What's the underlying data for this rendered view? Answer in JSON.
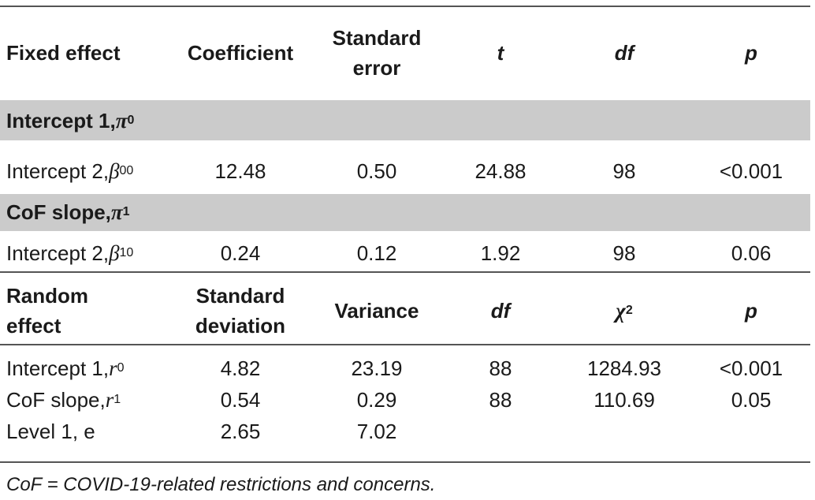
{
  "table": {
    "fixed_header": [
      "Fixed effect",
      "Coefficient",
      "Standard error",
      "t",
      "df",
      "p"
    ],
    "groups": [
      {
        "label": {
          "text": "Intercept 1, ",
          "symbol": "π",
          "sub": "0"
        },
        "row": {
          "label": {
            "text": "Intercept 2, ",
            "symbol": "β",
            "sub": "00"
          },
          "cells": [
            "12.48",
            "0.50",
            "24.88",
            "98",
            "<0.001"
          ]
        }
      },
      {
        "label": {
          "text": "CoF slope, ",
          "symbol": "π",
          "sub": "1"
        },
        "row": {
          "label": {
            "text": "Intercept 2, ",
            "symbol": "β",
            "sub": "10"
          },
          "cells": [
            "0.24",
            "0.12",
            "1.92",
            "98",
            "0.06"
          ]
        }
      }
    ],
    "random_header": [
      "Random effect",
      "Standard deviation",
      "Variance",
      "df",
      {
        "symbol": "χ",
        "sup": "2"
      },
      "p"
    ],
    "random_rows": [
      {
        "label": {
          "text": "Intercept 1, ",
          "symbol": "r",
          "sub": "0"
        },
        "cells": [
          "4.82",
          "23.19",
          "88",
          "1284.93",
          "<0.001"
        ]
      },
      {
        "label": {
          "text": "CoF slope, ",
          "symbol": "r",
          "sub": "1"
        },
        "cells": [
          "0.54",
          "0.29",
          "88",
          "110.69",
          "0.05"
        ]
      },
      {
        "label": {
          "text": "Level 1, e"
        },
        "cells": [
          "2.65",
          "7.02"
        ]
      }
    ]
  },
  "footnote": "CoF = COVID-19-related restrictions and concerns."
}
